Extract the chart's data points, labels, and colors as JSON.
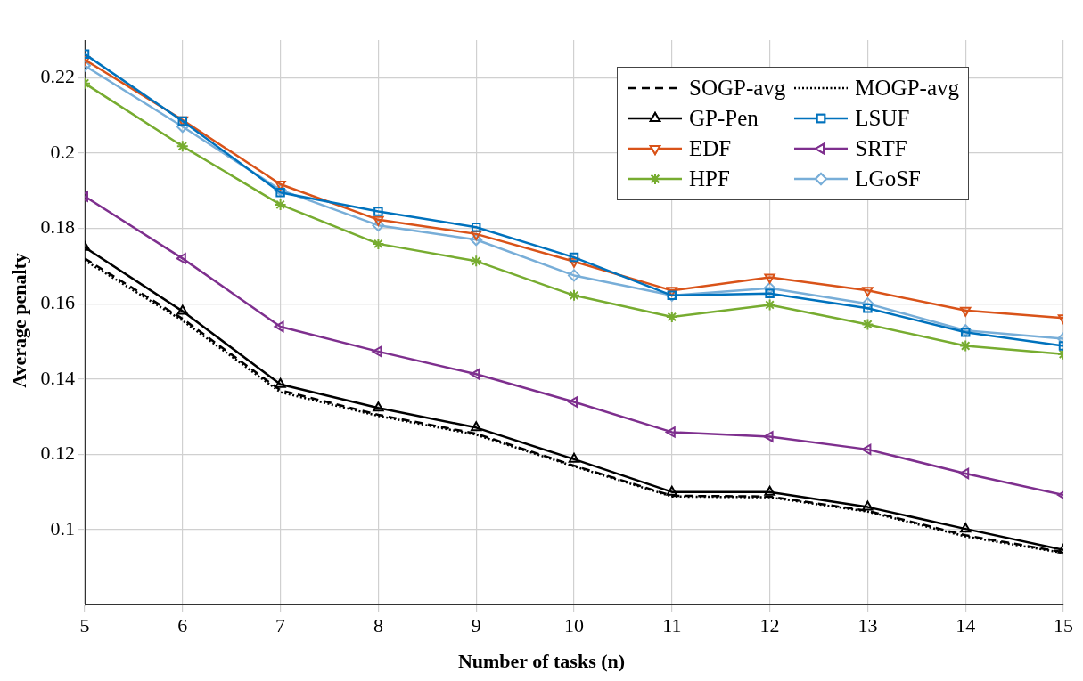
{
  "chart_data": {
    "type": "line",
    "xlabel": "Number of tasks (n)",
    "ylabel": "Average penalty",
    "x": [
      5,
      6,
      7,
      8,
      9,
      10,
      11,
      12,
      13,
      14,
      15
    ],
    "xlim": [
      5,
      15
    ],
    "xticks": [
      5,
      6,
      7,
      8,
      9,
      10,
      11,
      12,
      13,
      14,
      15
    ],
    "ylim": [
      0.08,
      0.23
    ],
    "yticks": [
      0.1,
      0.12,
      0.14,
      0.16,
      0.18,
      0.2,
      0.22
    ],
    "grid": true,
    "legend": "top right",
    "series": [
      {
        "name": "SOGP-avg",
        "color": "#000000",
        "line_style": "dashed",
        "marker": "none",
        "values": [
          0.172,
          0.156,
          0.137,
          0.1305,
          0.1255,
          0.117,
          0.109,
          0.1088,
          0.105,
          0.0985,
          0.094
        ]
      },
      {
        "name": "MOGP-avg",
        "color": "#000000",
        "line_style": "dotted",
        "marker": "none",
        "values": [
          0.1715,
          0.1555,
          0.1365,
          0.1302,
          0.1252,
          0.1168,
          0.1088,
          0.1086,
          0.1048,
          0.0982,
          0.0938
        ]
      },
      {
        "name": "GP-Pen",
        "color": "#000000",
        "line_style": "solid",
        "marker": "triangle",
        "values": [
          0.175,
          0.158,
          0.1386,
          0.1323,
          0.1271,
          0.1187,
          0.11,
          0.11,
          0.106,
          0.1002,
          0.0946
        ]
      },
      {
        "name": "LSUF",
        "color": "#0072bd",
        "line_style": "solid",
        "marker": "square",
        "values": [
          0.2263,
          0.2085,
          0.1895,
          0.1845,
          0.1803,
          0.1723,
          0.1622,
          0.1627,
          0.1588,
          0.1524,
          0.1488
        ]
      },
      {
        "name": "EDF",
        "color": "#d95319",
        "line_style": "solid",
        "marker": "triangle-down",
        "values": [
          0.2248,
          0.2088,
          0.1917,
          0.1823,
          0.1785,
          0.1712,
          0.1635,
          0.167,
          0.1635,
          0.1582,
          0.1562
        ]
      },
      {
        "name": "SRTF",
        "color": "#7e2f8e",
        "line_style": "solid",
        "marker": "triangle-left",
        "values": [
          0.1885,
          0.172,
          0.1539,
          0.1473,
          0.1413,
          0.1339,
          0.1259,
          0.1247,
          0.1213,
          0.1149,
          0.1092
        ]
      },
      {
        "name": "HPF",
        "color": "#77ac30",
        "line_style": "solid",
        "marker": "cross",
        "values": [
          0.2185,
          0.2018,
          0.1863,
          0.1759,
          0.1713,
          0.1622,
          0.1565,
          0.1597,
          0.1545,
          0.1488,
          0.1466
        ]
      },
      {
        "name": "LGoSF",
        "color": "#78aed8",
        "line_style": "solid",
        "marker": "diamond",
        "values": [
          0.2232,
          0.207,
          0.1902,
          0.1808,
          0.177,
          0.1675,
          0.1622,
          0.1641,
          0.16,
          0.1529,
          0.1507
        ]
      }
    ]
  }
}
